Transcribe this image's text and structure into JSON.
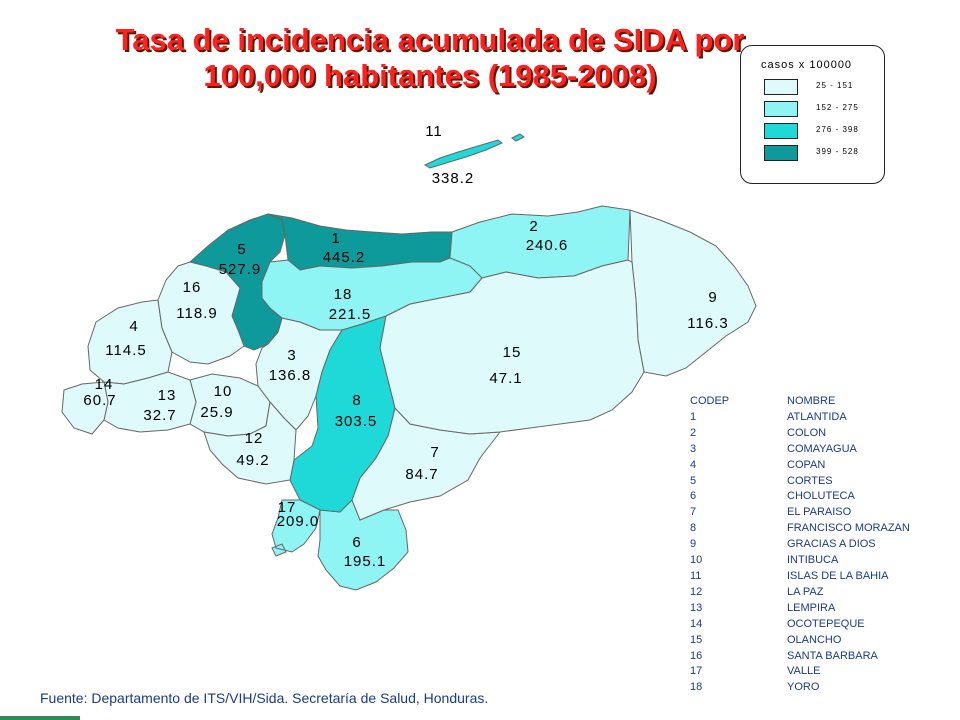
{
  "title": {
    "line1": "Tasa de incidencia acumulada de SIDA por",
    "line2": "100,000 habitantes (1985-2008)"
  },
  "legend": {
    "title": "casos x 100000",
    "items": [
      {
        "label": "25 - 151",
        "color": "#dffafa"
      },
      {
        "label": "152 - 275",
        "color": "#8ff4f4"
      },
      {
        "label": "276 - 398",
        "color": "#1fd9d9"
      },
      {
        "label": "399 - 528",
        "color": "#0e9a9a"
      }
    ]
  },
  "departments": [
    {
      "code": "1",
      "name": "ATLANTIDA",
      "value": "445.2",
      "class": 4
    },
    {
      "code": "2",
      "name": "COLON",
      "value": "240.6",
      "class": 2
    },
    {
      "code": "3",
      "name": "COMAYAGUA",
      "value": "136.8",
      "class": 1
    },
    {
      "code": "4",
      "name": "COPAN",
      "value": "114.5",
      "class": 1
    },
    {
      "code": "5",
      "name": "CORTES",
      "value": "527.9",
      "class": 4
    },
    {
      "code": "6",
      "name": "CHOLUTECA",
      "value": "195.1",
      "class": 2
    },
    {
      "code": "7",
      "name": "EL PARAISO",
      "value": "84.7",
      "class": 1
    },
    {
      "code": "8",
      "name": "FRANCISCO MORAZAN",
      "value": "303.5",
      "class": 3
    },
    {
      "code": "9",
      "name": "GRACIAS A DIOS",
      "value": "116.3",
      "class": 1
    },
    {
      "code": "10",
      "name": "INTIBUCA",
      "value": "25.9",
      "class": 1
    },
    {
      "code": "11",
      "name": "ISLAS DE LA BAHIA",
      "value": "338.2",
      "class": 3
    },
    {
      "code": "12",
      "name": "LA PAZ",
      "value": "49.2",
      "class": 1
    },
    {
      "code": "13",
      "name": "LEMPIRA",
      "value": "32.7",
      "class": 1
    },
    {
      "code": "14",
      "name": "OCOTEPEQUE",
      "value": "60.7",
      "class": 1
    },
    {
      "code": "15",
      "name": "OLANCHO",
      "value": "47.1",
      "class": 1
    },
    {
      "code": "16",
      "name": "SANTA BARBARA",
      "value": "118.9",
      "class": 1
    },
    {
      "code": "17",
      "name": "VALLE",
      "value": "209.0",
      "class": 2
    },
    {
      "code": "18",
      "name": "YORO",
      "value": "221.5",
      "class": 2
    }
  ],
  "table": {
    "header_code": "CODEP",
    "header_name": "NOMBRE"
  },
  "source": "Fuente: Departamento de ITS/VIH/Sida. Secretaría de Salud, Honduras."
}
